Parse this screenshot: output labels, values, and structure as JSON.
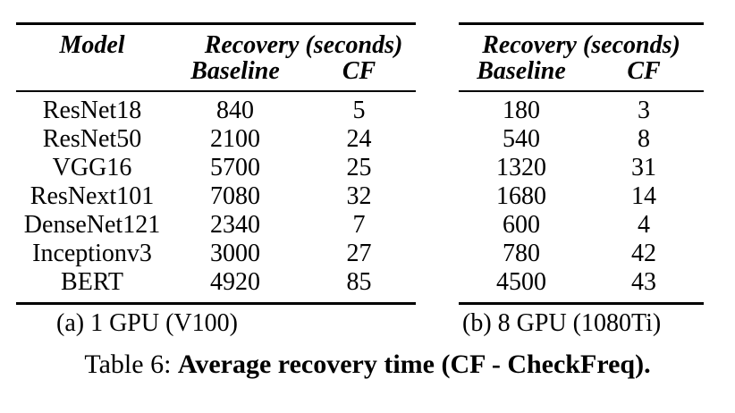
{
  "colors": {
    "background": "#ffffff",
    "text": "#000000",
    "rules": "#000000"
  },
  "figure": {
    "caption_prefix": "Table 6:",
    "caption_bold": "Average recovery time (CF - CheckFreq)."
  },
  "chart_data": [
    {
      "type": "table",
      "title": "(a) 1 GPU (V100)",
      "group_header": "Recovery (seconds)",
      "columns": [
        "Model",
        "Baseline",
        "CF"
      ],
      "rows": [
        [
          "ResNet18",
          "840",
          "5"
        ],
        [
          "ResNet50",
          "2100",
          "24"
        ],
        [
          "VGG16",
          "5700",
          "25"
        ],
        [
          "ResNext101",
          "7080",
          "32"
        ],
        [
          "DenseNet121",
          "2340",
          "7"
        ],
        [
          "Inceptionv3",
          "3000",
          "27"
        ],
        [
          "BERT",
          "4920",
          "85"
        ]
      ]
    },
    {
      "type": "table",
      "title": "(b) 8 GPU (1080Ti)",
      "group_header": "Recovery (seconds)",
      "columns": [
        "Baseline",
        "CF"
      ],
      "rows": [
        [
          "180",
          "3"
        ],
        [
          "540",
          "8"
        ],
        [
          "1320",
          "31"
        ],
        [
          "1680",
          "14"
        ],
        [
          "600",
          "4"
        ],
        [
          "780",
          "42"
        ],
        [
          "4500",
          "43"
        ]
      ]
    }
  ]
}
